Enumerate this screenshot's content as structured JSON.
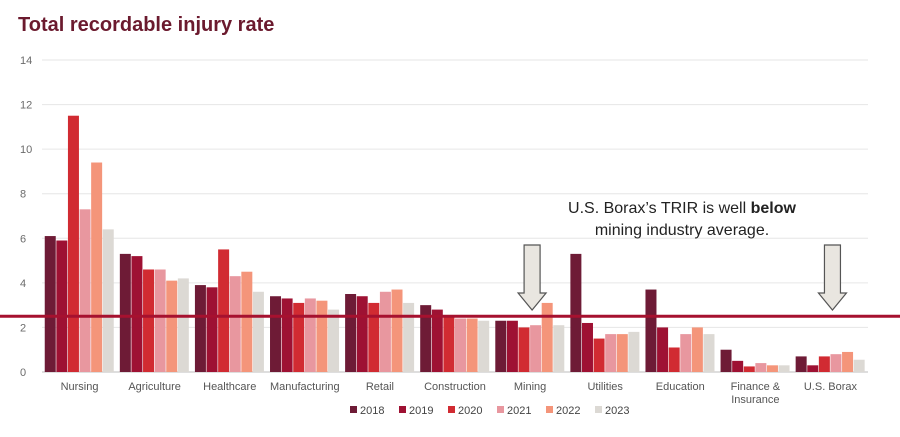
{
  "chart_data": {
    "type": "bar",
    "title": "Total recordable injury rate",
    "xlabel": "",
    "ylabel": "",
    "ylim": [
      0,
      14
    ],
    "yticks": [
      0,
      2,
      4,
      6,
      8,
      10,
      12,
      14
    ],
    "grid": true,
    "legend_position": "bottom-center",
    "categories": [
      [
        "Nursing"
      ],
      [
        "Agriculture"
      ],
      [
        "Healthcare"
      ],
      [
        "Manufacturing"
      ],
      [
        "Retail"
      ],
      [
        "Construction"
      ],
      [
        "Mining"
      ],
      [
        "Utilities"
      ],
      [
        "Education"
      ],
      [
        "Finance &",
        "Insurance"
      ],
      [
        "U.S. Borax"
      ]
    ],
    "series": [
      {
        "name": "2018",
        "color": "#6e1b36",
        "values": [
          6.1,
          5.3,
          3.9,
          3.4,
          3.5,
          3.0,
          2.3,
          5.3,
          3.7,
          1.0,
          0.7
        ]
      },
      {
        "name": "2019",
        "color": "#9e1133",
        "values": [
          5.9,
          5.2,
          3.8,
          3.3,
          3.4,
          2.8,
          2.3,
          2.2,
          2.0,
          0.5,
          0.3
        ]
      },
      {
        "name": "2020",
        "color": "#d12b32",
        "values": [
          11.5,
          4.6,
          5.5,
          3.1,
          3.1,
          2.5,
          2.0,
          1.5,
          1.1,
          0.25,
          0.7
        ]
      },
      {
        "name": "2021",
        "color": "#e8979f",
        "values": [
          7.3,
          4.6,
          4.3,
          3.3,
          3.6,
          2.4,
          2.1,
          1.7,
          1.7,
          0.4,
          0.8
        ]
      },
      {
        "name": "2022",
        "color": "#f4957a",
        "values": [
          9.4,
          4.1,
          4.5,
          3.2,
          3.7,
          2.4,
          3.1,
          1.7,
          2.0,
          0.3,
          0.9
        ]
      },
      {
        "name": "2023",
        "color": "#dcd9d4",
        "values": [
          6.4,
          4.2,
          3.6,
          2.8,
          3.1,
          2.3,
          2.1,
          1.8,
          1.7,
          0.3,
          0.55
        ]
      }
    ],
    "reference_line": {
      "value": 2.5,
      "color": "#a6112f"
    },
    "annotation": {
      "line1": "U.S. Borax’s TRIR is well ",
      "line1_bold": "below",
      "line2": "mining industry average."
    },
    "arrows_point_to": [
      "Mining",
      "U.S. Borax"
    ]
  }
}
